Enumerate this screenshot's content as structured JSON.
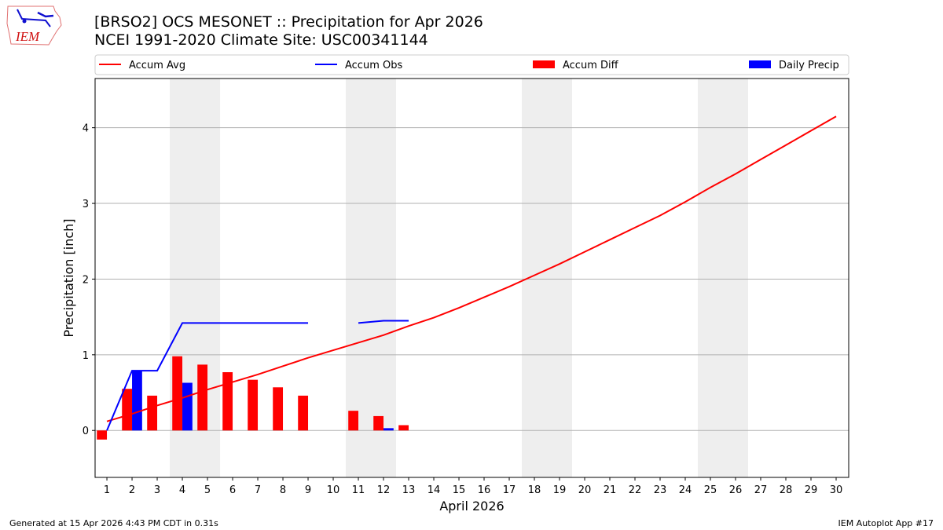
{
  "title_line1": "[BRSO2] OCS MESONET :: Precipitation for Apr 2026",
  "title_line2": "NCEI 1991-2020 Climate Site: USC00341144",
  "logo_text": "IEM",
  "footer_left": "Generated at 15 Apr 2026 4:43 PM CDT in 0.31s",
  "footer_right": "IEM Autoplot App #17",
  "chart_data": {
    "type": "bar+line",
    "xlabel": "April 2026",
    "ylabel": "Precipitation [inch]",
    "xlim": [
      0.53,
      30.5
    ],
    "ylim": [
      -0.62,
      4.65
    ],
    "x_ticks": [
      1,
      2,
      3,
      4,
      5,
      6,
      7,
      8,
      9,
      10,
      11,
      12,
      13,
      14,
      15,
      16,
      17,
      18,
      19,
      20,
      21,
      22,
      23,
      24,
      25,
      26,
      27,
      28,
      29,
      30
    ],
    "y_ticks": [
      0,
      1,
      2,
      3,
      4
    ],
    "grid": "horizontal",
    "legend_placement": "top",
    "weekend_shading": [
      [
        3.5,
        5.5
      ],
      [
        10.5,
        12.5
      ],
      [
        17.5,
        19.5
      ],
      [
        24.5,
        26.5
      ]
    ],
    "colors": {
      "avg": "#ff0000",
      "obs": "#0000ff",
      "diff": "#ff0000",
      "daily": "#0000ff",
      "shade": "#eeeeee"
    },
    "series": [
      {
        "name": "Accum Avg",
        "kind": "line",
        "x": [
          1,
          2,
          3,
          4,
          5,
          6,
          7,
          8,
          9,
          10,
          11,
          12,
          13,
          14,
          15,
          16,
          17,
          18,
          19,
          20,
          21,
          22,
          23,
          24,
          25,
          26,
          27,
          28,
          29,
          30
        ],
        "values": [
          0.12,
          0.22,
          0.33,
          0.43,
          0.54,
          0.64,
          0.74,
          0.85,
          0.96,
          1.06,
          1.16,
          1.26,
          1.38,
          1.49,
          1.62,
          1.76,
          1.9,
          2.05,
          2.2,
          2.36,
          2.52,
          2.68,
          2.84,
          3.02,
          3.21,
          3.39,
          3.58,
          3.77,
          3.96,
          4.15
        ]
      },
      {
        "name": "Accum Obs",
        "kind": "line",
        "x": [
          1,
          2,
          3,
          4,
          5,
          6,
          7,
          8,
          9,
          10,
          11,
          12,
          13
        ],
        "values": [
          0,
          0.79,
          0.79,
          1.42,
          1.42,
          1.42,
          1.42,
          1.42,
          1.42,
          null,
          1.42,
          1.45,
          1.45
        ]
      },
      {
        "name": "Accum Diff",
        "kind": "bar",
        "x": [
          1,
          2,
          3,
          4,
          5,
          6,
          7,
          8,
          9,
          11,
          12,
          13
        ],
        "values": [
          -0.12,
          0.55,
          0.46,
          0.98,
          0.87,
          0.77,
          0.67,
          0.57,
          0.46,
          0.26,
          0.19,
          0.07
        ]
      },
      {
        "name": "Daily Precip",
        "kind": "bar",
        "x": [
          2,
          4,
          12
        ],
        "values": [
          0.79,
          0.63,
          0.03
        ]
      }
    ]
  }
}
